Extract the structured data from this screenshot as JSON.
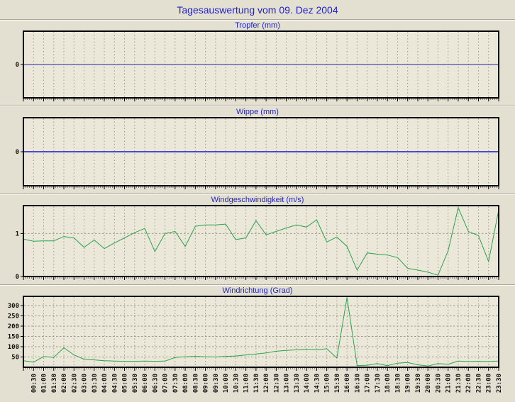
{
  "page": {
    "title": "Tagesauswertung vom 09. Dez 2004"
  },
  "colors": {
    "page_bg": "#e3e0d1",
    "plot_bg": "#ebe8d9",
    "grid": "#9b998a",
    "axis_border": "#000000",
    "title_blue": "#2222cc",
    "tick_text": "#111111",
    "line_green": "#2ba24e",
    "line_blue_thin": "#2323aa",
    "line_blue_thick": "#4a4ad6"
  },
  "x_axis": {
    "start": "00:00",
    "step_minutes": 30,
    "labels": [
      "00:30",
      "01:00",
      "01:30",
      "02:00",
      "02:30",
      "03:00",
      "03:30",
      "04:00",
      "04:30",
      "05:00",
      "05:30",
      "06:00",
      "06:30",
      "07:00",
      "07:30",
      "08:00",
      "08:30",
      "09:00",
      "09:30",
      "10:00",
      "10:30",
      "11:00",
      "11:30",
      "12:00",
      "12:30",
      "13:00",
      "13:30",
      "14:00",
      "14:30",
      "15:00",
      "15:30",
      "16:00",
      "16:30",
      "17:00",
      "17:30",
      "18:00",
      "18:30",
      "19:00",
      "19:30",
      "20:00",
      "20:30",
      "21:00",
      "21:30",
      "22:00",
      "22:30",
      "23:00",
      "23:30"
    ]
  },
  "chart_data": [
    {
      "id": "tropfer",
      "type": "line",
      "title": "Tropfer (mm)",
      "color": "#2323aa",
      "line_width": 1,
      "ylim": [
        -1,
        1
      ],
      "yticks": [
        {
          "v": 0,
          "label": "0",
          "grid": false
        }
      ],
      "show_x_labels": false,
      "values": [
        0,
        0,
        0,
        0,
        0,
        0,
        0,
        0,
        0,
        0,
        0,
        0,
        0,
        0,
        0,
        0,
        0,
        0,
        0,
        0,
        0,
        0,
        0,
        0,
        0,
        0,
        0,
        0,
        0,
        0,
        0,
        0,
        0,
        0,
        0,
        0,
        0,
        0,
        0,
        0,
        0,
        0,
        0,
        0,
        0,
        0,
        0,
        0
      ]
    },
    {
      "id": "wippe",
      "type": "line",
      "title": "Wippe (mm)",
      "color": "#4a4ad6",
      "line_width": 2,
      "ylim": [
        -1,
        1
      ],
      "yticks": [
        {
          "v": 0,
          "label": "0",
          "grid": false
        }
      ],
      "show_x_labels": false,
      "values": [
        0,
        0,
        0,
        0,
        0,
        0,
        0,
        0,
        0,
        0,
        0,
        0,
        0,
        0,
        0,
        0,
        0,
        0,
        0,
        0,
        0,
        0,
        0,
        0,
        0,
        0,
        0,
        0,
        0,
        0,
        0,
        0,
        0,
        0,
        0,
        0,
        0,
        0,
        0,
        0,
        0,
        0,
        0,
        0,
        0,
        0,
        0,
        0
      ]
    },
    {
      "id": "windgeschwindigkeit",
      "type": "line",
      "title": "Windgeschwindigkeit (m/s)",
      "color": "#2ba24e",
      "line_width": 1,
      "ylim": [
        0,
        1.65
      ],
      "yticks": [
        {
          "v": 0,
          "label": "0",
          "grid": false
        },
        {
          "v": 1,
          "label": "1",
          "grid": true
        }
      ],
      "show_x_labels": false,
      "values": [
        0.87,
        0.82,
        0.83,
        0.83,
        0.93,
        0.9,
        0.68,
        0.85,
        0.65,
        0.78,
        0.9,
        1.02,
        1.12,
        0.58,
        1.0,
        1.05,
        0.7,
        1.17,
        1.2,
        1.2,
        1.22,
        0.86,
        0.9,
        1.3,
        0.97,
        1.05,
        1.13,
        1.2,
        1.15,
        1.32,
        0.8,
        0.92,
        0.7,
        0.15,
        0.55,
        0.52,
        0.5,
        0.44,
        0.19,
        0.15,
        0.1,
        0.03,
        0.6,
        1.6,
        1.05,
        0.95,
        0.35,
        1.55
      ]
    },
    {
      "id": "windrichtung",
      "type": "line",
      "title": "Windrichtung (Grad)",
      "color": "#2ba24e",
      "line_width": 1,
      "ylim": [
        0,
        345
      ],
      "yticks": [
        {
          "v": 50,
          "label": "50",
          "grid": true
        },
        {
          "v": 100,
          "label": "100",
          "grid": true
        },
        {
          "v": 150,
          "label": "150",
          "grid": true
        },
        {
          "v": 200,
          "label": "200",
          "grid": true
        },
        {
          "v": 250,
          "label": "250",
          "grid": true
        },
        {
          "v": 300,
          "label": "300",
          "grid": true
        }
      ],
      "show_x_labels": true,
      "values": [
        32,
        25,
        52,
        48,
        95,
        60,
        39,
        36,
        32,
        30,
        29,
        29,
        30,
        29,
        30,
        48,
        51,
        53,
        51,
        50,
        53,
        55,
        60,
        65,
        70,
        78,
        82,
        85,
        88,
        85,
        90,
        45,
        340,
        8,
        10,
        18,
        8,
        20,
        23,
        12,
        6,
        18,
        15,
        30,
        28,
        29,
        28,
        30
      ]
    }
  ]
}
